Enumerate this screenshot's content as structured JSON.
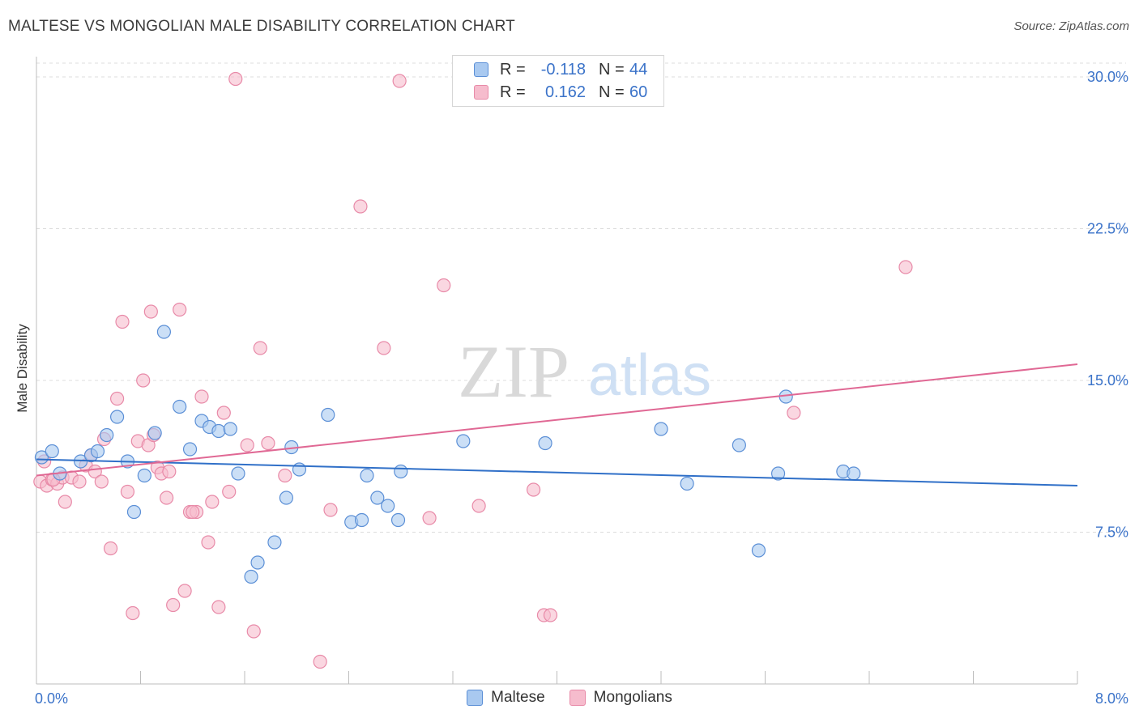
{
  "title": "MALTESE VS MONGOLIAN MALE DISABILITY CORRELATION CHART",
  "source": "Source: ZipAtlas.com",
  "watermark": {
    "zip": "ZIP",
    "atlas": "atlas"
  },
  "legend_top": {
    "rows": [
      {
        "r_label": "R =",
        "r_value": "-0.118",
        "n_label": "N =",
        "n_value": "44"
      },
      {
        "r_label": "R =",
        "r_value": "0.162",
        "n_label": "N =",
        "n_value": "60"
      }
    ]
  },
  "colors": {
    "maltese_fill": "#a9c9f0",
    "maltese_stroke": "#5b8fd6",
    "maltese_line": "#3070c8",
    "mongolian_fill": "#f6bccd",
    "mongolian_stroke": "#e88aa8",
    "mongolian_line": "#e06894",
    "tick_label": "#3b73c9",
    "grid": "#dcdcdc"
  },
  "chart_data": {
    "type": "scatter",
    "title": "MALTESE VS MONGOLIAN MALE DISABILITY CORRELATION CHART",
    "xlabel": "",
    "ylabel": "Male Disability",
    "xlim": [
      0.0,
      8.0
    ],
    "ylim": [
      0.0,
      31.0
    ],
    "x_tick_labels": [
      "0.0%",
      "8.0%"
    ],
    "y_ticks": [
      7.5,
      15.0,
      22.5,
      30.0
    ],
    "y_tick_labels": [
      "7.5%",
      "15.0%",
      "22.5%",
      "30.0%"
    ],
    "grid": "horizontal dashed",
    "legend": [
      "Maltese",
      "Mongolians"
    ],
    "series": [
      {
        "name": "Maltese",
        "r": -0.118,
        "n": 44,
        "trend": {
          "x": [
            0.0,
            8.0
          ],
          "y": [
            11.1,
            9.8
          ]
        },
        "points": [
          [
            0.04,
            11.2
          ],
          [
            0.12,
            11.5
          ],
          [
            0.18,
            10.4
          ],
          [
            0.34,
            11.0
          ],
          [
            0.42,
            11.3
          ],
          [
            0.47,
            11.5
          ],
          [
            0.54,
            12.3
          ],
          [
            0.62,
            13.2
          ],
          [
            0.7,
            11.0
          ],
          [
            0.75,
            8.5
          ],
          [
            0.83,
            10.3
          ],
          [
            0.91,
            12.4
          ],
          [
            0.98,
            17.4
          ],
          [
            1.1,
            13.7
          ],
          [
            1.18,
            11.6
          ],
          [
            1.27,
            13.0
          ],
          [
            1.33,
            12.7
          ],
          [
            1.4,
            12.5
          ],
          [
            1.49,
            12.6
          ],
          [
            1.55,
            10.4
          ],
          [
            1.65,
            5.3
          ],
          [
            1.7,
            6.0
          ],
          [
            1.83,
            7.0
          ],
          [
            1.92,
            9.2
          ],
          [
            1.96,
            11.7
          ],
          [
            2.02,
            10.6
          ],
          [
            2.24,
            13.3
          ],
          [
            2.42,
            8.0
          ],
          [
            2.5,
            8.1
          ],
          [
            2.54,
            10.3
          ],
          [
            2.62,
            9.2
          ],
          [
            2.7,
            8.8
          ],
          [
            2.78,
            8.1
          ],
          [
            2.8,
            10.5
          ],
          [
            3.28,
            12.0
          ],
          [
            3.91,
            11.9
          ],
          [
            4.8,
            12.6
          ],
          [
            5.0,
            9.9
          ],
          [
            5.4,
            11.8
          ],
          [
            5.55,
            6.6
          ],
          [
            5.7,
            10.4
          ],
          [
            5.76,
            14.2
          ],
          [
            6.2,
            10.5
          ],
          [
            6.28,
            10.4
          ]
        ]
      },
      {
        "name": "Mongolians",
        "r": 0.162,
        "n": 60,
        "trend": {
          "x": [
            0.0,
            8.0
          ],
          "y": [
            10.3,
            15.8
          ]
        },
        "points": [
          [
            0.03,
            10.0
          ],
          [
            0.08,
            9.8
          ],
          [
            0.12,
            10.1
          ],
          [
            0.16,
            9.9
          ],
          [
            0.2,
            10.2
          ],
          [
            0.22,
            9.0
          ],
          [
            0.27,
            10.2
          ],
          [
            0.33,
            10.0
          ],
          [
            0.38,
            10.8
          ],
          [
            0.42,
            11.3
          ],
          [
            0.45,
            10.5
          ],
          [
            0.5,
            10.0
          ],
          [
            0.52,
            12.1
          ],
          [
            0.57,
            6.7
          ],
          [
            0.62,
            14.1
          ],
          [
            0.66,
            17.9
          ],
          [
            0.7,
            9.5
          ],
          [
            0.74,
            3.5
          ],
          [
            0.78,
            12.0
          ],
          [
            0.82,
            15.0
          ],
          [
            0.86,
            11.8
          ],
          [
            0.88,
            18.4
          ],
          [
            0.9,
            12.3
          ],
          [
            0.93,
            10.7
          ],
          [
            0.96,
            10.4
          ],
          [
            1.0,
            9.2
          ],
          [
            1.05,
            3.9
          ],
          [
            1.1,
            18.5
          ],
          [
            1.14,
            4.6
          ],
          [
            1.18,
            8.5
          ],
          [
            1.23,
            8.5
          ],
          [
            1.27,
            14.2
          ],
          [
            1.32,
            7.0
          ],
          [
            1.35,
            9.0
          ],
          [
            1.4,
            3.8
          ],
          [
            1.44,
            13.4
          ],
          [
            1.48,
            9.5
          ],
          [
            1.53,
            29.9
          ],
          [
            1.62,
            11.8
          ],
          [
            1.67,
            2.6
          ],
          [
            1.72,
            16.6
          ],
          [
            1.78,
            11.9
          ],
          [
            1.91,
            10.3
          ],
          [
            2.18,
            1.1
          ],
          [
            2.26,
            8.6
          ],
          [
            2.49,
            23.6
          ],
          [
            2.67,
            16.6
          ],
          [
            2.79,
            29.8
          ],
          [
            3.02,
            8.2
          ],
          [
            3.13,
            19.7
          ],
          [
            3.4,
            8.8
          ],
          [
            3.82,
            9.6
          ],
          [
            3.9,
            3.4
          ],
          [
            3.95,
            3.4
          ],
          [
            5.82,
            13.4
          ],
          [
            6.68,
            20.6
          ],
          [
            0.06,
            11.0
          ],
          [
            0.13,
            10.1
          ],
          [
            1.2,
            8.5
          ],
          [
            1.02,
            10.5
          ]
        ]
      }
    ]
  },
  "legend_bottom": {
    "items": [
      "Maltese",
      "Mongolians"
    ]
  }
}
